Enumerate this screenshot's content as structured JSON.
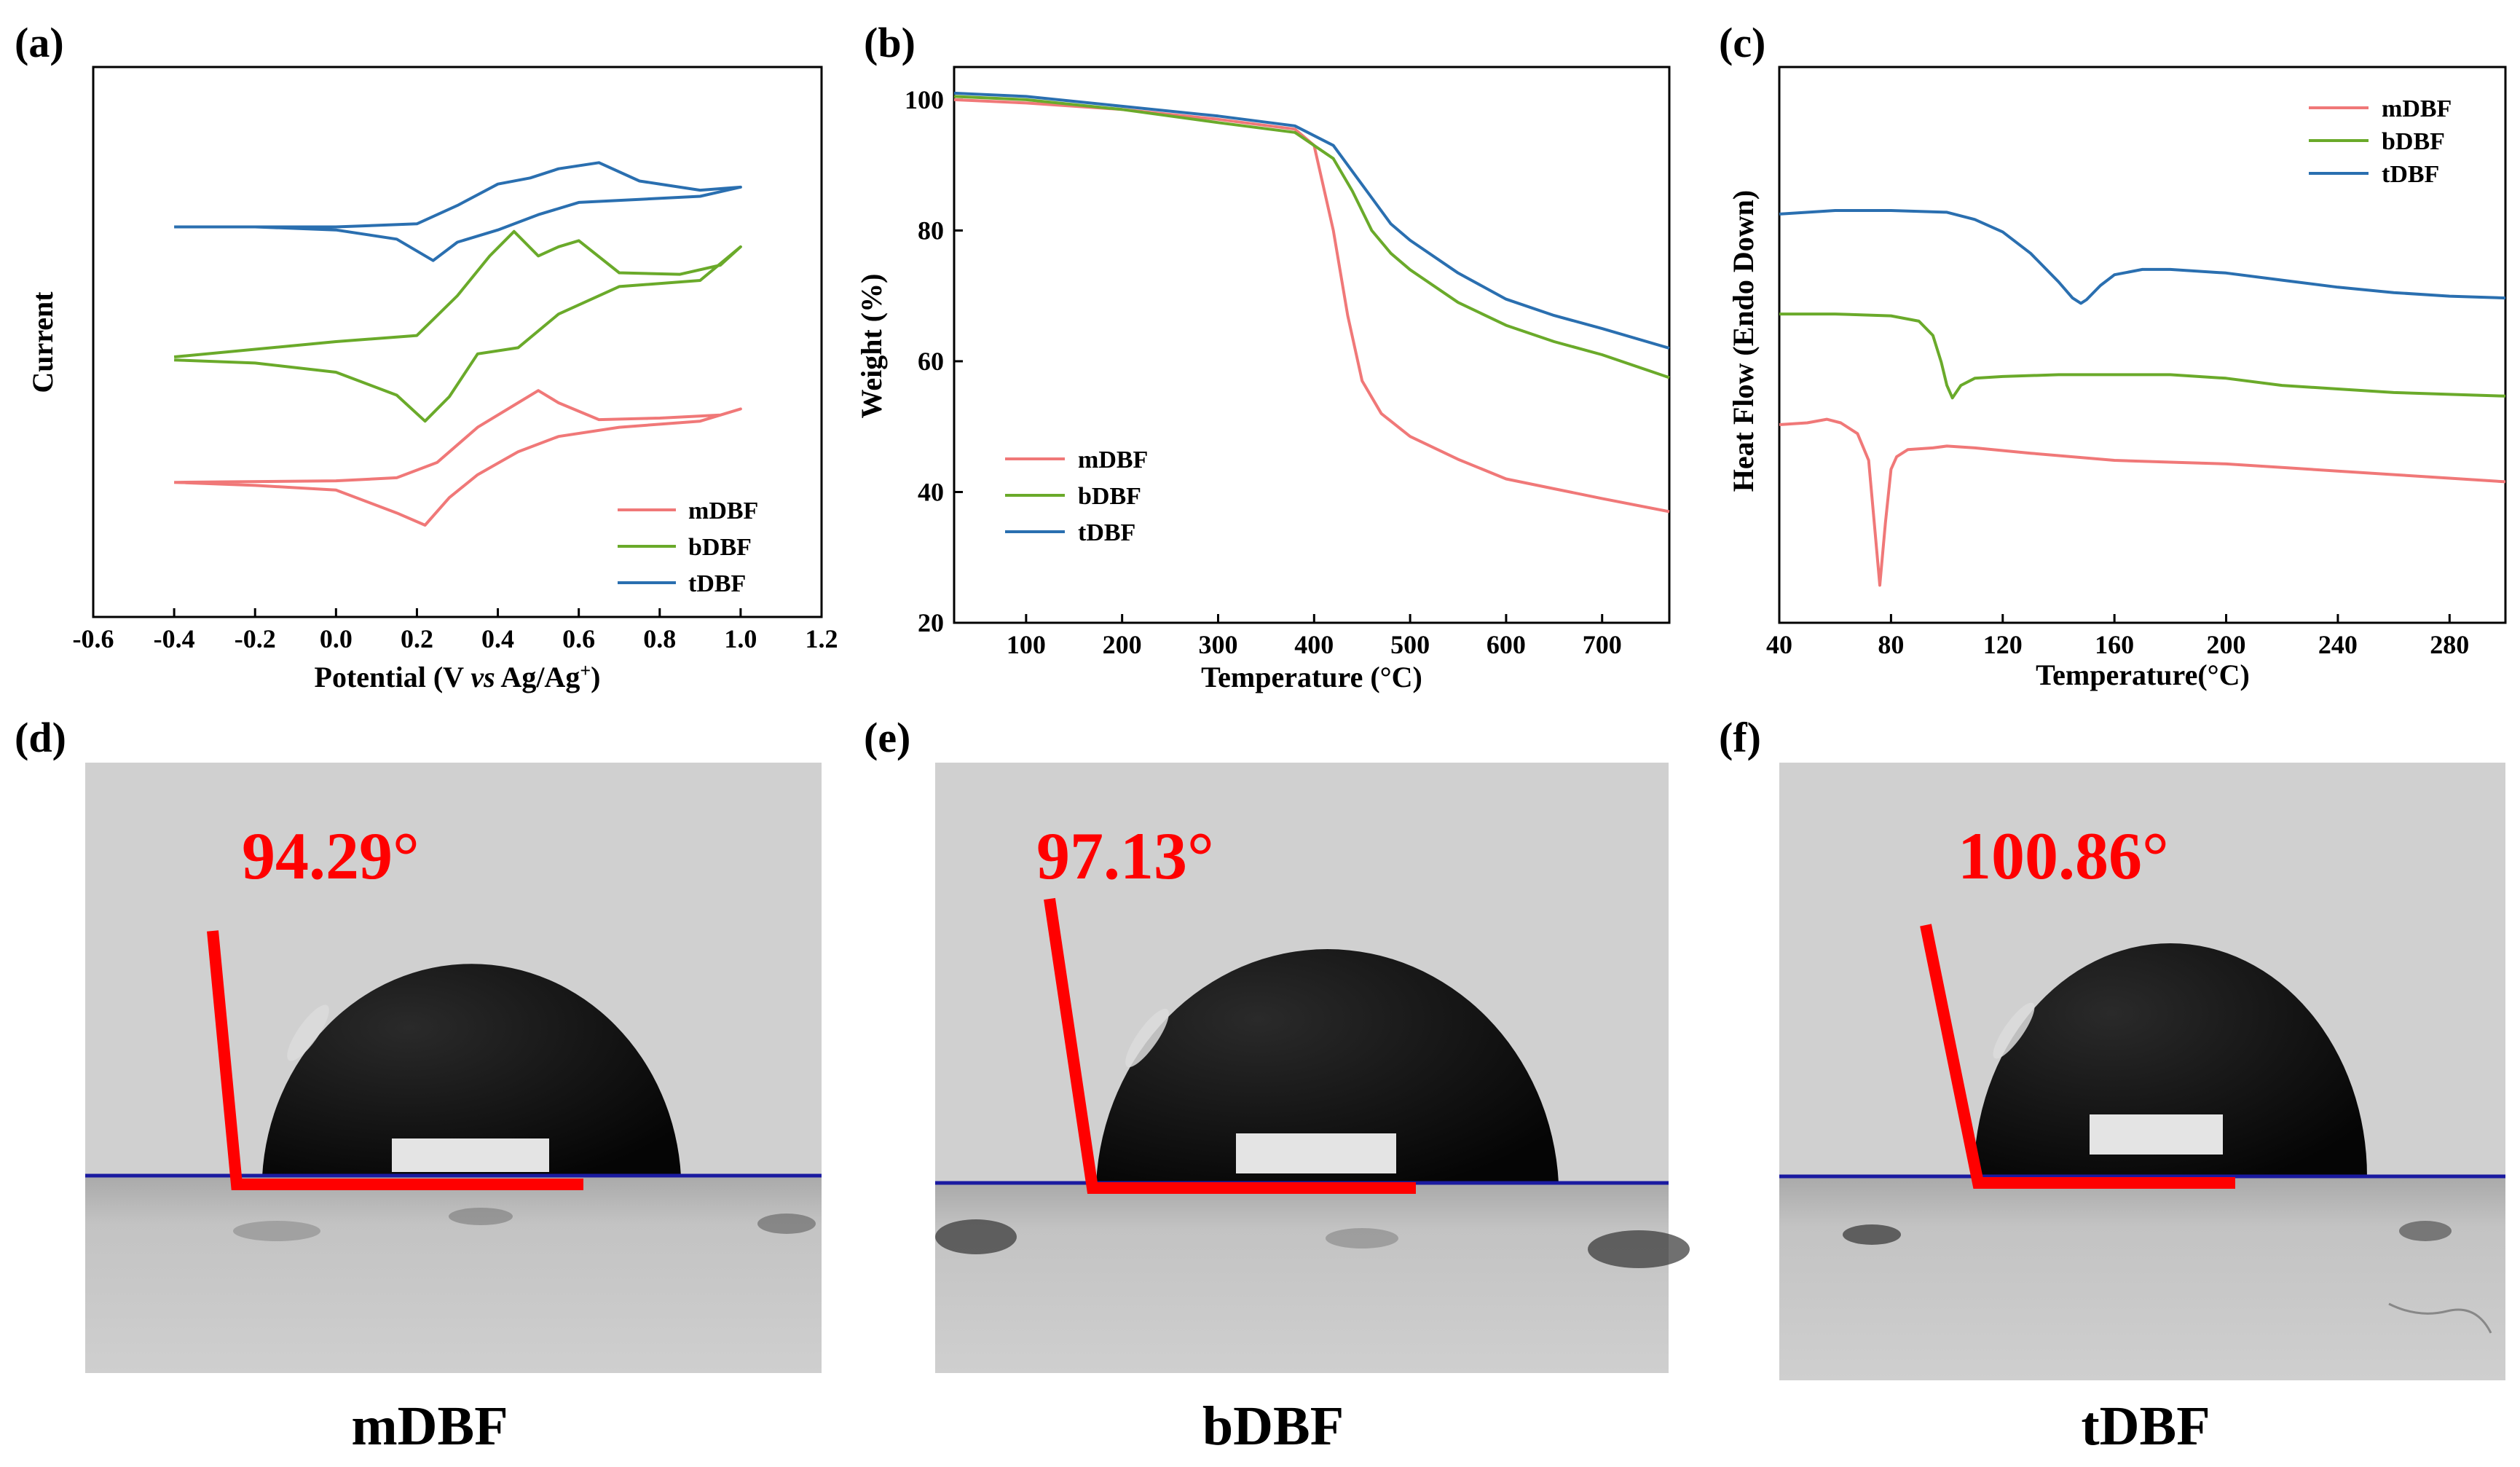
{
  "panels": {
    "a": {
      "label": "(a)",
      "xlabel_main": "Potential (V ",
      "xlabel_italic": "vs",
      "xlabel_tail": " Ag/Ag",
      "xlabel_sup": "+",
      "xlabel_close": ")",
      "ylabel": "Current"
    },
    "b": {
      "label": "(b)"
    },
    "c": {
      "label": "(c)"
    },
    "d": {
      "label": "(d)",
      "angle": "94.29°",
      "caption": "mDBF"
    },
    "e": {
      "label": "(e)",
      "angle": "97.13°",
      "caption": "bDBF"
    },
    "f": {
      "label": "(f)",
      "angle": "100.86°",
      "caption": "tDBF"
    }
  },
  "colors": {
    "mDBF": "#f07878",
    "bDBF": "#6aaa2a",
    "tDBF": "#2a6fb0",
    "angle_line": "#ff0000",
    "baseline": "#1a1aa0"
  },
  "chart_data": [
    {
      "type": "line",
      "title": "(a)",
      "xlabel": "Potential (V vs Ag/Ag+)",
      "ylabel": "Current",
      "xlim": [
        -0.6,
        1.2
      ],
      "xticks": [
        "-0.6",
        "-0.4",
        "-0.2",
        "0.0",
        "0.2",
        "0.4",
        "0.6",
        "0.8",
        "1.0",
        "1.2"
      ],
      "legend": [
        "mDBF",
        "bDBF",
        "tDBF"
      ],
      "legend_position": "bottom-right",
      "series": [
        {
          "name": "mDBF",
          "offset": 0.18,
          "forward_x": [
            -0.4,
            0.0,
            0.15,
            0.25,
            0.35,
            0.45,
            0.5,
            0.55,
            0.65,
            0.8,
            0.95,
            1.0
          ],
          "forward_y": [
            0.0,
            0.01,
            0.03,
            0.13,
            0.36,
            0.52,
            0.6,
            0.52,
            0.41,
            0.42,
            0.44,
            0.48
          ],
          "reverse_x": [
            1.0,
            0.9,
            0.7,
            0.55,
            0.45,
            0.35,
            0.28,
            0.22,
            0.15,
            0.0,
            -0.2,
            -0.4
          ],
          "reverse_y": [
            0.48,
            0.4,
            0.36,
            0.3,
            0.2,
            0.05,
            -0.1,
            -0.28,
            -0.2,
            -0.05,
            -0.02,
            0.0
          ]
        },
        {
          "name": "bDBF",
          "offset": 1.0,
          "forward_x": [
            -0.4,
            0.0,
            0.2,
            0.3,
            0.38,
            0.44,
            0.5,
            0.55,
            0.6,
            0.7,
            0.85,
            0.95,
            1.0
          ],
          "forward_y": [
            0.0,
            0.1,
            0.14,
            0.4,
            0.66,
            0.82,
            0.66,
            0.72,
            0.76,
            0.55,
            0.54,
            0.6,
            0.72
          ],
          "reverse_x": [
            1.0,
            0.9,
            0.7,
            0.55,
            0.45,
            0.35,
            0.28,
            0.22,
            0.15,
            0.0,
            -0.2,
            -0.4
          ],
          "reverse_y": [
            0.72,
            0.5,
            0.46,
            0.28,
            0.06,
            0.02,
            -0.26,
            -0.42,
            -0.25,
            -0.1,
            -0.04,
            -0.02
          ]
        },
        {
          "name": "tDBF",
          "offset": 1.85,
          "forward_x": [
            -0.4,
            0.0,
            0.2,
            0.3,
            0.4,
            0.48,
            0.55,
            0.65,
            0.75,
            0.9,
            1.0
          ],
          "forward_y": [
            0.0,
            0.0,
            0.02,
            0.14,
            0.28,
            0.32,
            0.38,
            0.42,
            0.3,
            0.24,
            0.26
          ],
          "reverse_x": [
            1.0,
            0.9,
            0.75,
            0.6,
            0.5,
            0.4,
            0.3,
            0.24,
            0.15,
            0.0,
            -0.2,
            -0.4
          ],
          "reverse_y": [
            0.26,
            0.2,
            0.18,
            0.16,
            0.08,
            -0.02,
            -0.1,
            -0.22,
            -0.08,
            -0.02,
            0.0,
            0.0
          ]
        }
      ]
    },
    {
      "type": "line",
      "title": "(b)",
      "xlabel": "Temperature (°C)",
      "ylabel": "Weight (%)",
      "xlim": [
        25,
        770
      ],
      "ylim": [
        20,
        105
      ],
      "xticks": [
        "100",
        "200",
        "300",
        "400",
        "500",
        "600",
        "700"
      ],
      "yticks": [
        "20",
        "40",
        "60",
        "80",
        "100"
      ],
      "legend": [
        "mDBF",
        "bDBF",
        "tDBF"
      ],
      "legend_position": "bottom-left",
      "series": [
        {
          "name": "mDBF",
          "x": [
            25,
            100,
            200,
            300,
            380,
            400,
            420,
            435,
            450,
            470,
            500,
            550,
            600,
            650,
            700,
            770
          ],
          "y": [
            100,
            99.5,
            98.5,
            97,
            95.5,
            93,
            80,
            67,
            57,
            52,
            48.5,
            45,
            42,
            40.5,
            39,
            37
          ]
        },
        {
          "name": "bDBF",
          "x": [
            25,
            100,
            200,
            300,
            380,
            420,
            440,
            460,
            480,
            500,
            550,
            600,
            650,
            700,
            770
          ],
          "y": [
            100.5,
            100,
            98.5,
            96.5,
            95,
            91,
            86,
            80,
            76.5,
            74,
            69,
            65.5,
            63,
            61,
            57.5
          ]
        },
        {
          "name": "tDBF",
          "x": [
            25,
            100,
            200,
            300,
            380,
            420,
            440,
            460,
            480,
            500,
            550,
            600,
            650,
            700,
            770
          ],
          "y": [
            101,
            100.5,
            99,
            97.5,
            96,
            93,
            89,
            85,
            81,
            78.5,
            73.5,
            69.5,
            67,
            65,
            62
          ]
        }
      ]
    },
    {
      "type": "line",
      "title": "(c)",
      "xlabel": "Temperature(°C)",
      "ylabel": "Heat Flow (Endo Down)",
      "xlim": [
        40,
        300
      ],
      "xticks": [
        "40",
        "80",
        "120",
        "160",
        "200",
        "240",
        "280"
      ],
      "legend": [
        "mDBF",
        "bDBF",
        "tDBF"
      ],
      "legend_position": "top-right",
      "series": [
        {
          "name": "mDBF",
          "x": [
            40,
            50,
            57,
            62,
            68,
            72,
            74,
            76,
            78,
            80,
            82,
            86,
            95,
            100,
            110,
            130,
            160,
            180,
            200,
            220,
            240,
            260,
            280,
            300
          ],
          "y": [
            0.6,
            0.61,
            0.63,
            0.61,
            0.55,
            0.4,
            0.05,
            -0.3,
            0.05,
            0.35,
            0.42,
            0.46,
            0.47,
            0.48,
            0.47,
            0.44,
            0.4,
            0.39,
            0.38,
            0.36,
            0.34,
            0.32,
            0.3,
            0.28
          ]
        },
        {
          "name": "bDBF",
          "x": [
            40,
            60,
            80,
            90,
            95,
            98,
            100,
            102,
            105,
            110,
            120,
            140,
            160,
            180,
            200,
            220,
            240,
            260,
            280,
            300
          ],
          "y": [
            1.22,
            1.22,
            1.21,
            1.18,
            1.1,
            0.95,
            0.82,
            0.75,
            0.82,
            0.86,
            0.87,
            0.88,
            0.88,
            0.88,
            0.86,
            0.82,
            0.8,
            0.78,
            0.77,
            0.76
          ]
        },
        {
          "name": "tDBF",
          "x": [
            40,
            60,
            80,
            100,
            110,
            120,
            130,
            140,
            145,
            148,
            150,
            155,
            160,
            170,
            180,
            200,
            220,
            240,
            260,
            280,
            300
          ],
          "y": [
            1.78,
            1.8,
            1.8,
            1.79,
            1.75,
            1.68,
            1.56,
            1.4,
            1.31,
            1.28,
            1.3,
            1.38,
            1.44,
            1.47,
            1.47,
            1.45,
            1.41,
            1.37,
            1.34,
            1.32,
            1.31
          ]
        }
      ]
    }
  ]
}
